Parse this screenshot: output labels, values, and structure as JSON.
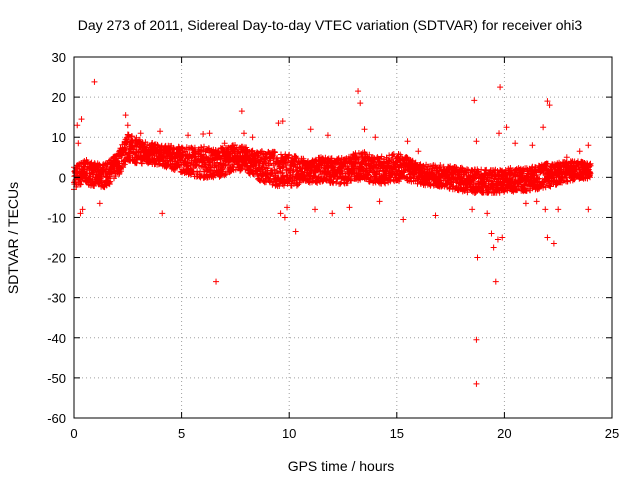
{
  "chart_data": {
    "type": "scatter",
    "title": "Day 273 of 2011, Sidereal Day-to-day VTEC variation (SDTVAR) for receiver ohi3",
    "xlabel": "GPS time / hours",
    "ylabel": "SDTVAR / TECUs",
    "xlim": [
      0,
      25
    ],
    "ylim": [
      -60,
      30
    ],
    "xticks": [
      0,
      5,
      10,
      15,
      20,
      25
    ],
    "xtick_labels": [
      "0",
      "5",
      "10",
      "15",
      "20",
      "25"
    ],
    "yticks": [
      -60,
      -50,
      -40,
      -30,
      -20,
      -10,
      0,
      10,
      20,
      30
    ],
    "ytick_labels": [
      "-60",
      "-50",
      "-40",
      "-30",
      "-20",
      "-10",
      "0",
      "10",
      "20",
      "30"
    ],
    "grid": true,
    "marker": "+",
    "color": "#ff0000",
    "series": [
      {
        "name": "SDTVAR",
        "points": [
          [
            0.95,
            23.8
          ],
          [
            0.15,
            13.0
          ],
          [
            0.35,
            14.5
          ],
          [
            0.2,
            8.5
          ],
          [
            1.2,
            -6.5
          ],
          [
            0.3,
            -9.0
          ],
          [
            0.4,
            -8.0
          ],
          [
            2.4,
            15.5
          ],
          [
            2.5,
            13.0
          ],
          [
            3.1,
            11.0
          ],
          [
            4.0,
            11.5
          ],
          [
            4.1,
            -9.0
          ],
          [
            5.3,
            10.5
          ],
          [
            6.0,
            10.8
          ],
          [
            6.3,
            11.0
          ],
          [
            6.6,
            -26.0
          ],
          [
            7.0,
            8.5
          ],
          [
            7.8,
            16.5
          ],
          [
            7.9,
            11.0
          ],
          [
            8.3,
            10.0
          ],
          [
            9.5,
            13.5
          ],
          [
            9.7,
            14.0
          ],
          [
            9.6,
            -9.0
          ],
          [
            9.8,
            -10.0
          ],
          [
            9.9,
            -7.5
          ],
          [
            10.3,
            -13.5
          ],
          [
            11.0,
            12.0
          ],
          [
            11.2,
            -8.0
          ],
          [
            11.8,
            10.5
          ],
          [
            12.0,
            -9.0
          ],
          [
            12.8,
            -7.5
          ],
          [
            13.2,
            21.5
          ],
          [
            13.3,
            18.5
          ],
          [
            13.5,
            12.0
          ],
          [
            14.0,
            10.0
          ],
          [
            14.2,
            -6.0
          ],
          [
            15.3,
            -10.5
          ],
          [
            15.5,
            9.0
          ],
          [
            16.8,
            -9.5
          ],
          [
            16.0,
            6.5
          ],
          [
            18.6,
            19.2
          ],
          [
            18.7,
            9.0
          ],
          [
            18.75,
            -20.0
          ],
          [
            18.7,
            -40.5
          ],
          [
            18.7,
            -51.5
          ],
          [
            18.5,
            -8.0
          ],
          [
            19.2,
            -9.0
          ],
          [
            19.4,
            -14.0
          ],
          [
            19.5,
            -17.5
          ],
          [
            19.6,
            -26.0
          ],
          [
            19.7,
            -15.5
          ],
          [
            19.8,
            22.5
          ],
          [
            19.9,
            -15.0
          ],
          [
            19.75,
            11.0
          ],
          [
            20.1,
            12.5
          ],
          [
            20.5,
            8.5
          ],
          [
            21.0,
            -6.5
          ],
          [
            21.3,
            8.0
          ],
          [
            21.5,
            -6.0
          ],
          [
            21.8,
            12.5
          ],
          [
            22.0,
            19.0
          ],
          [
            22.1,
            18.0
          ],
          [
            21.9,
            -8.0
          ],
          [
            22.0,
            -15.0
          ],
          [
            22.3,
            -16.5
          ],
          [
            22.5,
            -8.0
          ],
          [
            23.5,
            6.5
          ],
          [
            23.9,
            8.0
          ],
          [
            23.9,
            -8.0
          ],
          [
            22.9,
            5.0
          ]
        ],
        "band_centerline": [
          [
            0.0,
            0.0
          ],
          [
            0.5,
            1.5
          ],
          [
            1.0,
            0.5
          ],
          [
            1.5,
            0.5
          ],
          [
            2.0,
            3.0
          ],
          [
            2.5,
            7.5
          ],
          [
            3.0,
            6.5
          ],
          [
            3.5,
            6.0
          ],
          [
            4.0,
            5.5
          ],
          [
            4.5,
            5.0
          ],
          [
            5.0,
            4.5
          ],
          [
            5.5,
            4.0
          ],
          [
            6.0,
            3.8
          ],
          [
            6.5,
            3.5
          ],
          [
            7.0,
            4.0
          ],
          [
            7.5,
            5.0
          ],
          [
            8.0,
            4.5
          ],
          [
            8.5,
            3.0
          ],
          [
            9.0,
            2.5
          ],
          [
            9.5,
            2.0
          ],
          [
            10.0,
            1.8
          ],
          [
            10.5,
            1.5
          ],
          [
            11.0,
            1.2
          ],
          [
            11.5,
            2.0
          ],
          [
            12.0,
            1.8
          ],
          [
            12.5,
            1.5
          ],
          [
            13.0,
            2.5
          ],
          [
            13.5,
            3.0
          ],
          [
            14.0,
            1.5
          ],
          [
            14.5,
            2.0
          ],
          [
            15.0,
            2.5
          ],
          [
            15.5,
            2.0
          ],
          [
            16.0,
            0.8
          ],
          [
            16.5,
            0.5
          ],
          [
            17.0,
            0.3
          ],
          [
            17.5,
            0.0
          ],
          [
            18.0,
            -0.5
          ],
          [
            18.5,
            -1.0
          ],
          [
            19.0,
            -1.0
          ],
          [
            19.5,
            -1.0
          ],
          [
            20.0,
            -0.8
          ],
          [
            20.5,
            -0.5
          ],
          [
            21.0,
            -0.5
          ],
          [
            21.5,
            0.0
          ],
          [
            22.0,
            0.5
          ],
          [
            22.5,
            1.0
          ],
          [
            23.0,
            1.5
          ],
          [
            23.5,
            1.8
          ],
          [
            24.0,
            1.5
          ]
        ],
        "band_halfwidth": [
          [
            0.0,
            3.0
          ],
          [
            2.0,
            3.0
          ],
          [
            2.5,
            3.5
          ],
          [
            4.0,
            2.5
          ],
          [
            6.0,
            4.0
          ],
          [
            8.0,
            3.0
          ],
          [
            9.5,
            4.5
          ],
          [
            11.0,
            3.0
          ],
          [
            13.0,
            3.5
          ],
          [
            15.0,
            3.5
          ],
          [
            16.0,
            2.5
          ],
          [
            18.0,
            3.0
          ],
          [
            20.0,
            3.0
          ],
          [
            22.0,
            3.0
          ],
          [
            24.0,
            2.0
          ]
        ]
      }
    ]
  }
}
